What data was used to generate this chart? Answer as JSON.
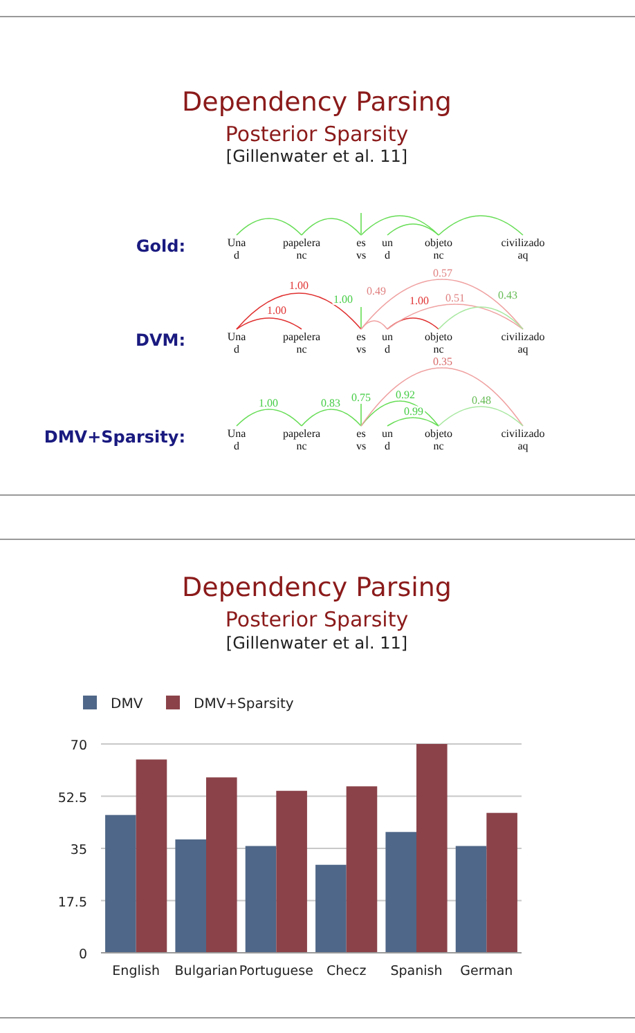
{
  "chart_data": [
    {
      "type": "other",
      "title": "Dependency Parsing",
      "subtitle": "Posterior Sparsity",
      "annotations": [
        "[Gillenwater et al. 11]",
        "Gold:",
        "DVM:",
        "DMV+Sparsity:",
        "Una",
        "d",
        "papelera",
        "nc",
        "es",
        "vs",
        "un",
        "d",
        "objeto",
        "nc",
        "civilizado",
        "aq",
        "Una",
        "d",
        "papelera",
        "nc",
        "es",
        "vs",
        "un",
        "d",
        "objeto",
        "nc",
        "civilizado",
        "aq",
        "Una",
        "d",
        "papelera",
        "nc",
        "es",
        "vs",
        "un",
        "d",
        "objeto",
        "nc",
        "civilizado",
        "aq",
        "1.00",
        "1.00",
        "1.00",
        "0.49",
        "1.00",
        "0.57",
        "0.51",
        "0.43",
        "0.35",
        "1.00",
        "0.83",
        "0.75",
        "0.92",
        "0.99",
        "0.48"
      ]
    },
    {
      "type": "bar",
      "title": "Dependency Parsing",
      "subtitle": "Posterior Sparsity",
      "annotations": [
        "[Gillenwater et al. 11]"
      ],
      "categories": [
        "English",
        "Bulgarian",
        "Portuguese",
        "Checz",
        "Spanish",
        "German"
      ],
      "series": [
        {
          "name": "DMV",
          "color": "#4f6788",
          "values": [
            46.2,
            38.0,
            35.8,
            29.5,
            40.5,
            35.8
          ]
        },
        {
          "name": "DMV+Sparsity",
          "color": "#8b4249",
          "values": [
            64.8,
            58.8,
            54.3,
            55.8,
            70,
            46.9
          ]
        }
      ],
      "ylim": [
        0,
        70
      ],
      "yticks": [
        0,
        17.5,
        35,
        52.5,
        70
      ],
      "grid": "y",
      "legend": "top left"
    }
  ]
}
